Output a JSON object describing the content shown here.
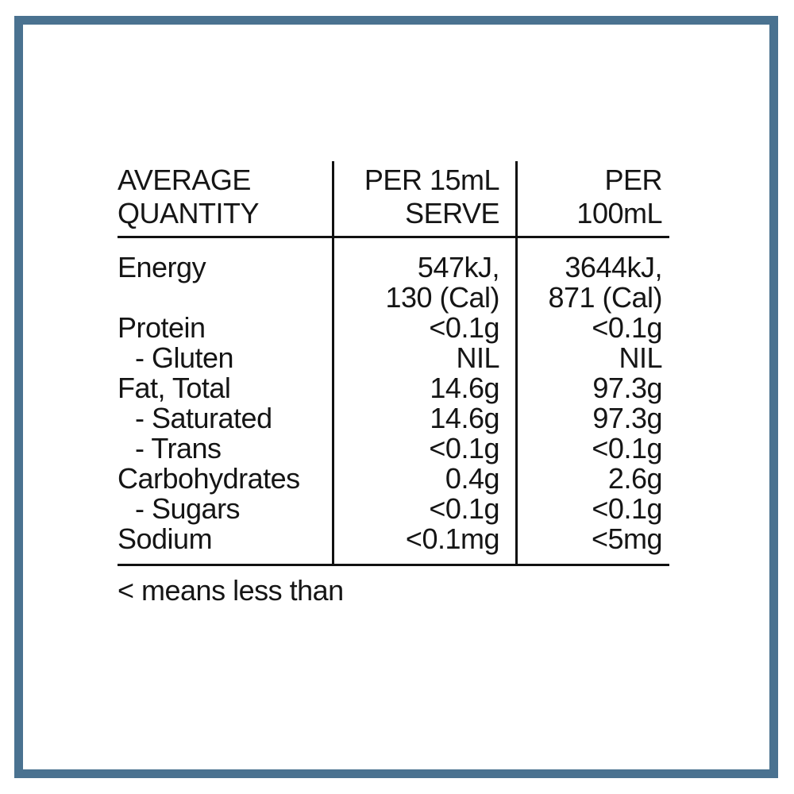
{
  "frame": {
    "border_color": "#4A7290"
  },
  "table": {
    "header": {
      "quantity": "AVERAGE\nQUANTITY",
      "serve": "PER 15mL\nSERVE",
      "per100": "PER\n100mL"
    },
    "rows": [
      {
        "label": "Energy",
        "serve": "547kJ,\n130 (Cal)",
        "per100": "3644kJ,\n871 (Cal)"
      },
      {
        "label": "Protein",
        "serve": "<0.1g",
        "per100": "<0.1g"
      },
      {
        "label": "- Gluten",
        "serve": "NIL",
        "per100": "NIL"
      },
      {
        "label": "Fat, Total",
        "serve": "14.6g",
        "per100": "97.3g"
      },
      {
        "label": "- Saturated",
        "serve": "14.6g",
        "per100": "97.3g"
      },
      {
        "label": "- Trans",
        "serve": "<0.1g",
        "per100": "<0.1g"
      },
      {
        "label": "Carbohydrates",
        "serve": "0.4g",
        "per100": "2.6g"
      },
      {
        "label": "- Sugars",
        "serve": "<0.1g",
        "per100": "<0.1g"
      },
      {
        "label": "Sodium",
        "serve": "<0.1mg",
        "per100": "<5mg"
      }
    ],
    "footnote": "< means less than"
  }
}
